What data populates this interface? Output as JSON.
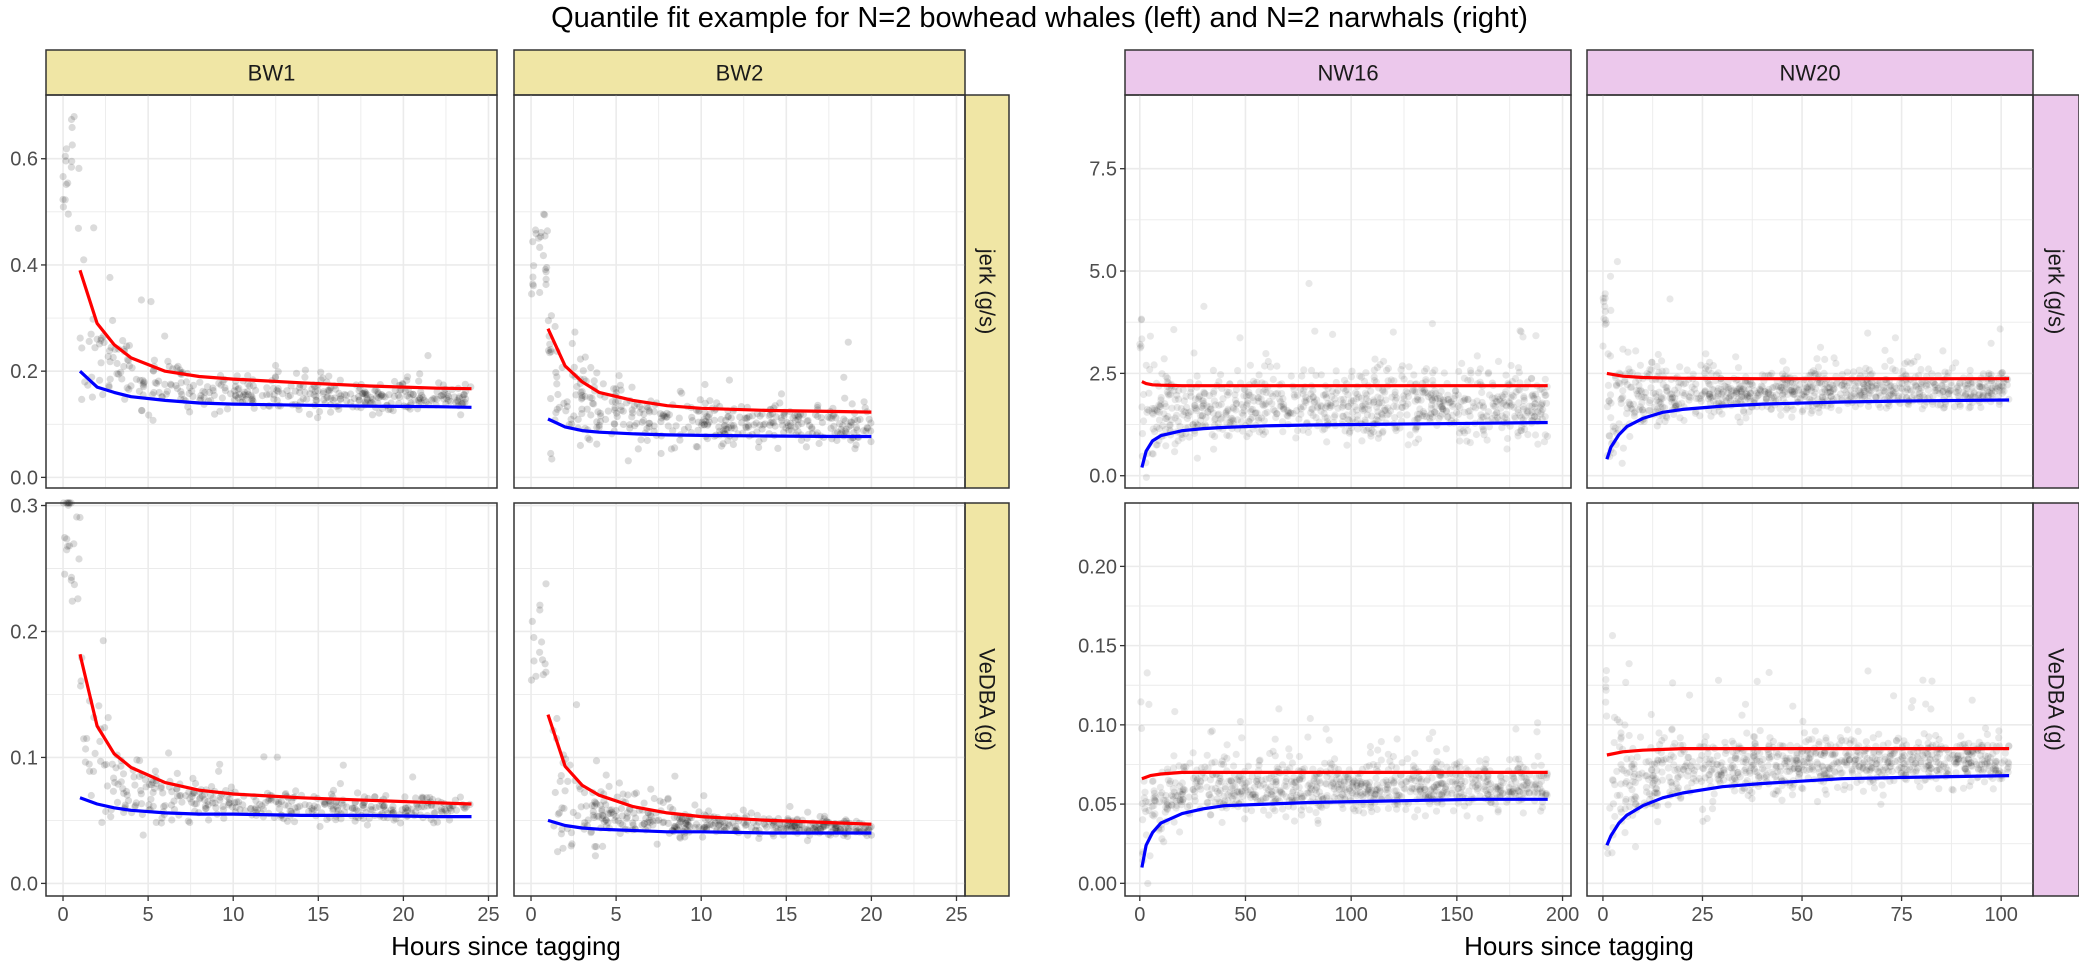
{
  "title": "Quantile fit example for N=2 bowhead whales (left) and N=2 narwhals (right)",
  "colors": {
    "points": "#000000",
    "upper_fit": "#ff0000",
    "lower_fit": "#0000ff",
    "bowhead_strip": "#f0e6a5",
    "narwhal_strip": "#ecc8ec",
    "grid": "#ebebeb"
  },
  "chart_data": [
    {
      "type": "scatter",
      "group": "bowhead whales",
      "title": "",
      "xlabel": "Hours since tagging",
      "columns": [
        "BW1",
        "BW2"
      ],
      "rows": [
        "jerk (g/s)",
        "VeDBA (g)"
      ],
      "xlim": [
        -1,
        25.5
      ],
      "x_ticks": [
        0,
        5,
        10,
        15,
        20,
        25
      ],
      "grid": true,
      "row_axes": [
        {
          "ylabel": "jerk (g/s)",
          "ylim": [
            -0.02,
            0.72
          ],
          "y_ticks": [
            0.0,
            0.2,
            0.4,
            0.6
          ]
        },
        {
          "ylabel": "VeDBA (g)",
          "ylim": [
            -0.01,
            0.302
          ],
          "y_ticks": [
            0.0,
            0.1,
            0.2,
            0.3
          ]
        }
      ],
      "panels": [
        {
          "column": "BW1",
          "row": "jerk (g/s)",
          "x_max": 24,
          "series": [
            {
              "quantile": "upper",
              "x": [
                1,
                2,
                3,
                4,
                6,
                8,
                10,
                14,
                18,
                22,
                24
              ],
              "y": [
                0.39,
                0.29,
                0.25,
                0.225,
                0.2,
                0.19,
                0.185,
                0.178,
                0.172,
                0.168,
                0.167
              ]
            },
            {
              "quantile": "lower",
              "x": [
                1,
                2,
                3,
                4,
                6,
                8,
                10,
                14,
                18,
                22,
                24
              ],
              "y": [
                0.2,
                0.17,
                0.16,
                0.152,
                0.145,
                0.14,
                0.138,
                0.136,
                0.134,
                0.133,
                0.132
              ]
            }
          ]
        },
        {
          "column": "BW2",
          "row": "jerk (g/s)",
          "x_max": 20,
          "series": [
            {
              "quantile": "upper",
              "x": [
                1,
                2,
                3,
                4,
                6,
                8,
                10,
                14,
                18,
                20
              ],
              "y": [
                0.28,
                0.21,
                0.18,
                0.16,
                0.145,
                0.135,
                0.13,
                0.126,
                0.124,
                0.123
              ]
            },
            {
              "quantile": "lower",
              "x": [
                1,
                2,
                3,
                4,
                6,
                8,
                10,
                14,
                18,
                20
              ],
              "y": [
                0.11,
                0.095,
                0.088,
                0.085,
                0.082,
                0.08,
                0.079,
                0.078,
                0.077,
                0.077
              ]
            }
          ]
        },
        {
          "column": "BW1",
          "row": "VeDBA (g)",
          "x_max": 24,
          "series": [
            {
              "quantile": "upper",
              "x": [
                1,
                2,
                3,
                4,
                6,
                8,
                10,
                14,
                18,
                22,
                24
              ],
              "y": [
                0.182,
                0.125,
                0.103,
                0.092,
                0.08,
                0.074,
                0.071,
                0.068,
                0.066,
                0.064,
                0.063
              ]
            },
            {
              "quantile": "lower",
              "x": [
                1,
                2,
                3,
                4,
                6,
                8,
                10,
                14,
                18,
                22,
                24
              ],
              "y": [
                0.068,
                0.063,
                0.06,
                0.058,
                0.056,
                0.055,
                0.055,
                0.054,
                0.054,
                0.053,
                0.053
              ]
            }
          ]
        },
        {
          "column": "BW2",
          "row": "VeDBA (g)",
          "x_max": 20,
          "series": [
            {
              "quantile": "upper",
              "x": [
                1,
                2,
                3,
                4,
                6,
                8,
                10,
                14,
                18,
                20
              ],
              "y": [
                0.134,
                0.093,
                0.078,
                0.07,
                0.061,
                0.056,
                0.053,
                0.05,
                0.048,
                0.047
              ]
            },
            {
              "quantile": "lower",
              "x": [
                1,
                2,
                3,
                4,
                6,
                8,
                10,
                14,
                18,
                20
              ],
              "y": [
                0.05,
                0.046,
                0.044,
                0.043,
                0.042,
                0.041,
                0.041,
                0.04,
                0.04,
                0.04
              ]
            }
          ]
        }
      ]
    },
    {
      "type": "scatter",
      "group": "narwhals",
      "title": "",
      "xlabel": "Hours since tagging",
      "columns": [
        "NW16",
        "NW20"
      ],
      "rows": [
        "jerk (g/s)",
        "VeDBA (g)"
      ],
      "column_axes": [
        {
          "column": "NW16",
          "xlim": [
            -7,
            204
          ],
          "x_ticks": [
            0,
            50,
            100,
            150,
            200
          ]
        },
        {
          "column": "NW20",
          "xlim": [
            -4,
            108
          ],
          "x_ticks": [
            0,
            25,
            50,
            75,
            100
          ]
        }
      ],
      "grid": true,
      "row_axes": [
        {
          "ylabel": "jerk (g/s)",
          "ylim": [
            -0.3,
            9.3
          ],
          "y_ticks": [
            0.0,
            2.5,
            5.0,
            7.5
          ]
        },
        {
          "ylabel": "VeDBA (g)",
          "ylim": [
            -0.008,
            0.24
          ],
          "y_ticks": [
            0.0,
            0.05,
            0.1,
            0.15,
            0.2
          ]
        }
      ],
      "panels": [
        {
          "column": "NW16",
          "row": "jerk (g/s)",
          "x_max": 193,
          "series": [
            {
              "quantile": "upper",
              "x": [
                1,
                3,
                6,
                10,
                20,
                40,
                80,
                120,
                160,
                193
              ],
              "y": [
                2.3,
                2.25,
                2.22,
                2.21,
                2.2,
                2.2,
                2.2,
                2.2,
                2.2,
                2.2
              ]
            },
            {
              "quantile": "lower",
              "x": [
                1,
                3,
                6,
                10,
                20,
                30,
                40,
                60,
                80,
                120,
                160,
                193
              ],
              "y": [
                0.2,
                0.6,
                0.85,
                0.98,
                1.1,
                1.15,
                1.18,
                1.22,
                1.24,
                1.26,
                1.28,
                1.3
              ]
            }
          ]
        },
        {
          "column": "NW20",
          "row": "jerk (g/s)",
          "x_max": 102,
          "series": [
            {
              "quantile": "upper",
              "x": [
                1,
                5,
                10,
                20,
                40,
                60,
                80,
                102
              ],
              "y": [
                2.5,
                2.43,
                2.4,
                2.38,
                2.37,
                2.37,
                2.37,
                2.37
              ]
            },
            {
              "quantile": "lower",
              "x": [
                1,
                2,
                4,
                6,
                10,
                15,
                20,
                30,
                40,
                60,
                80,
                102
              ],
              "y": [
                0.4,
                0.7,
                1.0,
                1.2,
                1.4,
                1.55,
                1.62,
                1.7,
                1.75,
                1.8,
                1.83,
                1.85
              ]
            }
          ]
        },
        {
          "column": "NW16",
          "row": "VeDBA (g)",
          "x_max": 193,
          "series": [
            {
              "quantile": "upper",
              "x": [
                1,
                5,
                10,
                20,
                40,
                80,
                120,
                160,
                193
              ],
              "y": [
                0.066,
                0.068,
                0.069,
                0.07,
                0.07,
                0.07,
                0.07,
                0.07,
                0.07
              ]
            },
            {
              "quantile": "lower",
              "x": [
                1,
                3,
                6,
                10,
                20,
                30,
                40,
                60,
                80,
                120,
                160,
                193
              ],
              "y": [
                0.01,
                0.024,
                0.032,
                0.038,
                0.044,
                0.047,
                0.049,
                0.05,
                0.051,
                0.052,
                0.053,
                0.053
              ]
            }
          ]
        },
        {
          "column": "NW20",
          "row": "VeDBA (g)",
          "x_max": 102,
          "series": [
            {
              "quantile": "upper",
              "x": [
                1,
                5,
                10,
                20,
                40,
                60,
                80,
                102
              ],
              "y": [
                0.081,
                0.083,
                0.084,
                0.085,
                0.085,
                0.085,
                0.085,
                0.085
              ]
            },
            {
              "quantile": "lower",
              "x": [
                1,
                2,
                4,
                6,
                10,
                15,
                20,
                30,
                40,
                60,
                80,
                102
              ],
              "y": [
                0.024,
                0.03,
                0.038,
                0.043,
                0.049,
                0.054,
                0.057,
                0.061,
                0.063,
                0.066,
                0.067,
                0.068
              ]
            }
          ]
        }
      ]
    }
  ]
}
